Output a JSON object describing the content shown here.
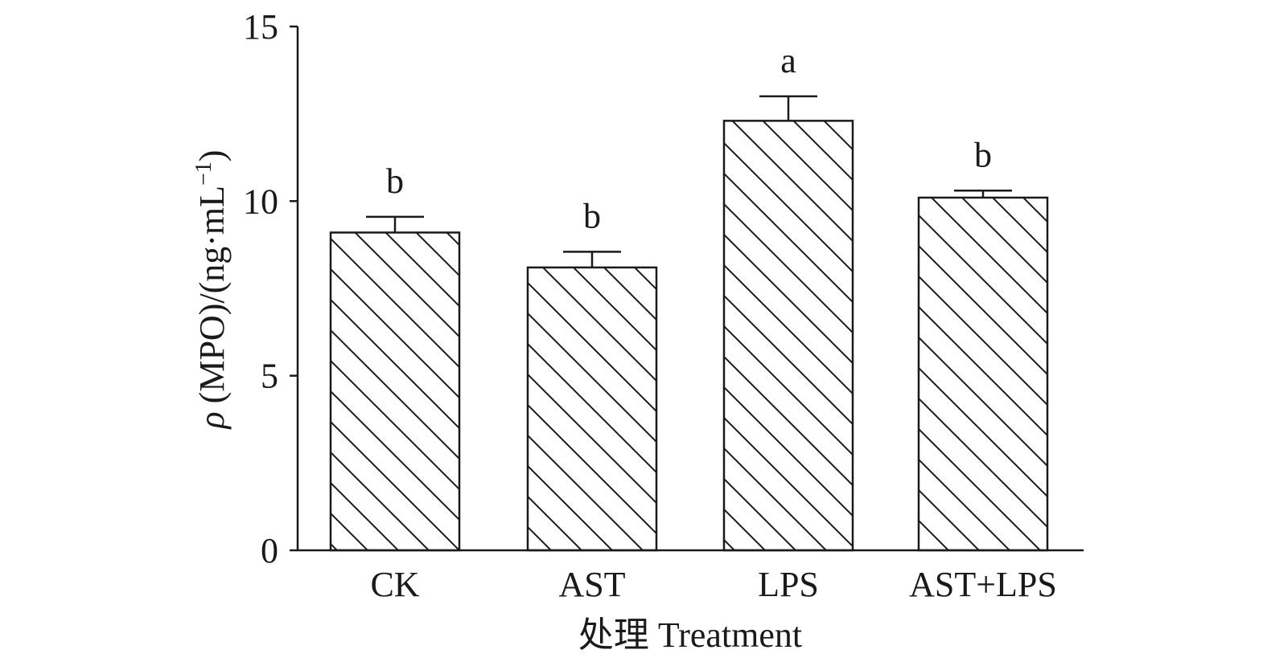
{
  "chart_data": {
    "type": "bar",
    "categories": [
      "CK",
      "AST",
      "LPS",
      "AST+LPS"
    ],
    "values": [
      9.1,
      8.1,
      12.3,
      10.1
    ],
    "errors": [
      0.45,
      0.45,
      0.7,
      0.2
    ],
    "significance": [
      "b",
      "b",
      "a",
      "b"
    ],
    "title": "",
    "xlabel": "处理 Treatment",
    "ylabel_prefix": "ρ",
    "ylabel": "(MPO)/(ng·mL",
    "ylabel_sup": "−1",
    "ylabel_suffix": ")",
    "ylim": [
      0,
      15
    ],
    "yticks": [
      0,
      5,
      10,
      15
    ],
    "grid": false,
    "bar_fill_pattern": "diagonal-hatch",
    "colors": {
      "stroke": "#1a1a1a",
      "fill": "#ffffff"
    }
  }
}
